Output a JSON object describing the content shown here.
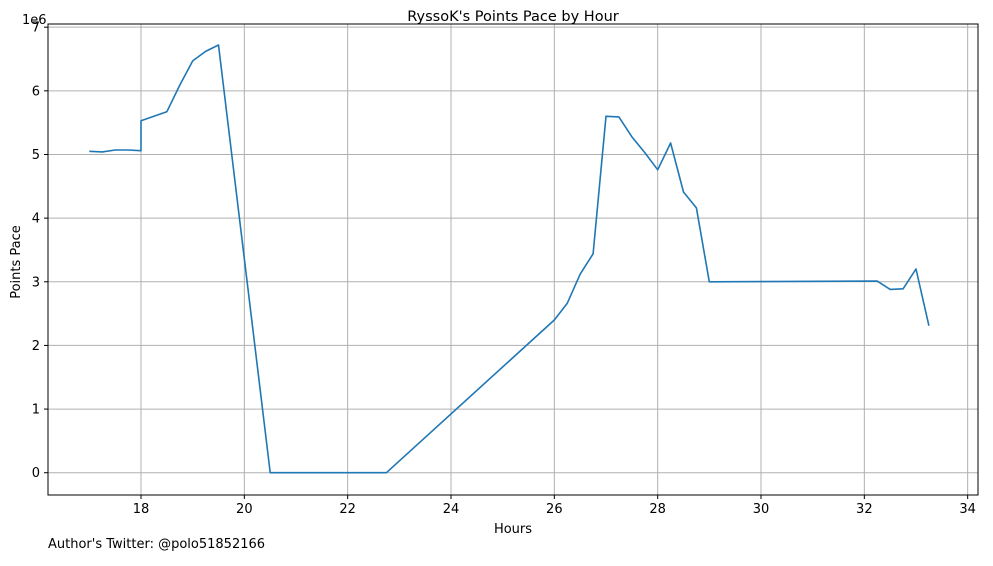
{
  "chart_data": {
    "type": "line",
    "title": "RyssoK's Points Pace by Hour",
    "xlabel": "Hours",
    "ylabel": "Points Pace",
    "y_multiplier_label": "1e6",
    "xlim": [
      16.2,
      34.2
    ],
    "ylim": [
      -0.35,
      7.05
    ],
    "x_ticks": [
      18,
      20,
      22,
      24,
      26,
      28,
      30,
      32,
      34
    ],
    "y_ticks": [
      0,
      1,
      2,
      3,
      4,
      5,
      6,
      7
    ],
    "grid": true,
    "line_color": "#1f77b4",
    "series": [
      {
        "x": [
          17.0,
          17.25,
          17.5,
          17.75,
          18.0,
          18.0,
          18.25,
          18.5,
          18.75,
          19.0,
          19.25,
          19.5,
          20.5,
          22.75,
          26.0,
          26.25,
          26.5,
          26.75,
          27.0,
          27.25,
          27.5,
          27.75,
          28.0,
          28.25,
          28.5,
          28.75,
          29.0,
          32.25,
          32.5,
          32.75,
          33.0,
          33.25
        ],
        "y": [
          5.05,
          5.04,
          5.07,
          5.07,
          5.06,
          5.53,
          5.6,
          5.67,
          6.09,
          6.47,
          6.62,
          6.72,
          0.0,
          0.0,
          2.4,
          2.66,
          3.12,
          3.44,
          5.6,
          5.59,
          5.28,
          5.03,
          4.76,
          5.18,
          4.41,
          4.16,
          3.0,
          3.01,
          2.88,
          2.89,
          3.2,
          2.31
        ]
      }
    ]
  },
  "footer_text": "Author's Twitter: @polo51852166"
}
